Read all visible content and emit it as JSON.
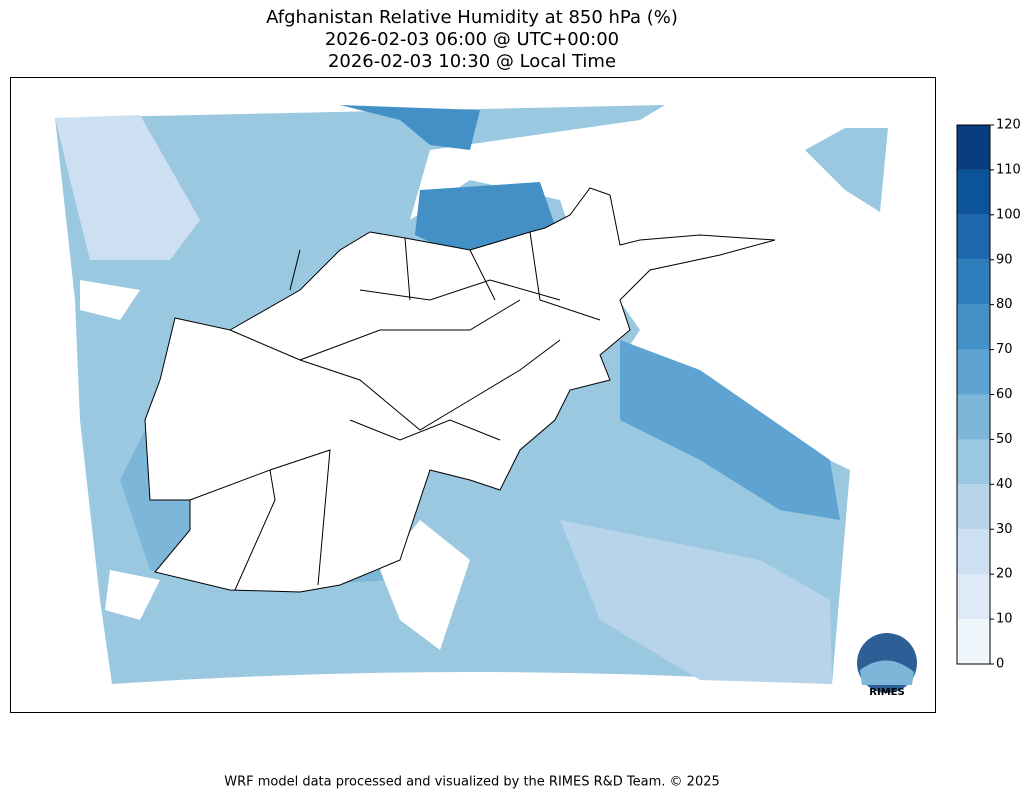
{
  "title": [
    "Afghanistan Relative Humidity at 850 hPa (%)",
    "2026-02-03 06:00 @ UTC+00:00",
    "2026-02-03 10:30 @ Local Time"
  ],
  "colorbar": {
    "lim": [
      0,
      120
    ],
    "ticks": [
      0,
      10,
      20,
      30,
      40,
      50,
      60,
      70,
      80,
      90,
      100,
      110,
      120
    ],
    "colors": [
      "#eff6fc",
      "#deebf7",
      "#cde0f1",
      "#b7d4ea",
      "#9ac8e0",
      "#7cb7da",
      "#5ea3d1",
      "#4390c6",
      "#2e7ebc",
      "#1c67ad",
      "#0d539a",
      "#083d7f"
    ]
  },
  "logo": "RIMES",
  "footer": "WRF model data processed and visualized by the RIMES R&D Team. © 2025"
}
